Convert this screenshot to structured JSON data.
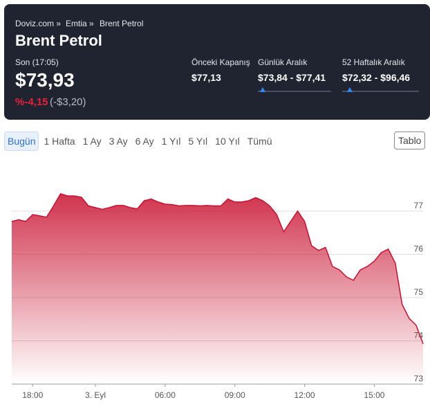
{
  "header": {
    "breadcrumbs": [
      "Doviz.com »",
      "Emtia »",
      "Brent Petrol"
    ],
    "title": "Brent Petrol",
    "time_label": "Son (17:05)",
    "price": "$73,93",
    "change_percent": "%-4,15",
    "change_amount": "(-$3,20)",
    "stats": [
      {
        "label": "Önceki Kapanış",
        "value": "$77,13"
      },
      {
        "label": "Günlük Aralık",
        "value": "$73,84 - $77,41"
      },
      {
        "label": "52 Haftalık Aralık",
        "value": "$72,32 - $96,46"
      }
    ]
  },
  "tabs": [
    "Bugün",
    "1 Hafta",
    "1 Ay",
    "3 Ay",
    "6 Ay",
    "1 Yıl",
    "5 Yıl",
    "10 Yıl",
    "Tümü"
  ],
  "selected_tab": "Bugün",
  "table_button": "Tablo",
  "chart_data": {
    "type": "area",
    "color": "#c8102e",
    "categories": [
      null,
      null,
      null,
      "18:00",
      null,
      null,
      null,
      null,
      null,
      null,
      null,
      null,
      "3. Eyl",
      null,
      null,
      null,
      null,
      null,
      null,
      null,
      null,
      null,
      "06:00",
      null,
      null,
      null,
      null,
      null,
      null,
      null,
      null,
      null,
      "09:00",
      null,
      null,
      null,
      null,
      null,
      null,
      null,
      null,
      null,
      "12:00",
      null,
      null,
      null,
      null,
      null,
      null,
      null,
      null,
      null,
      "15:00",
      null,
      null,
      null,
      null,
      null,
      null,
      null
    ],
    "values": [
      76.76,
      76.8,
      76.76,
      76.92,
      76.89,
      76.86,
      77.12,
      77.4,
      77.35,
      77.35,
      77.32,
      77.12,
      77.08,
      77.04,
      77.08,
      77.13,
      77.13,
      77.08,
      77.05,
      77.24,
      77.28,
      77.21,
      77.16,
      77.15,
      77.12,
      77.13,
      77.13,
      77.12,
      77.13,
      77.12,
      77.12,
      77.28,
      77.21,
      77.21,
      77.24,
      77.31,
      77.24,
      77.12,
      76.92,
      76.52,
      76.76,
      77.0,
      76.76,
      76.2,
      76.09,
      76.16,
      75.72,
      75.64,
      75.48,
      75.4,
      75.64,
      75.72,
      75.84,
      76.04,
      76.12,
      75.8,
      74.84,
      74.52,
      74.36,
      73.93
    ],
    "ylim": [
      73,
      78.04
    ],
    "yticks": [
      73,
      74,
      75,
      76,
      77
    ],
    "grid": true
  }
}
